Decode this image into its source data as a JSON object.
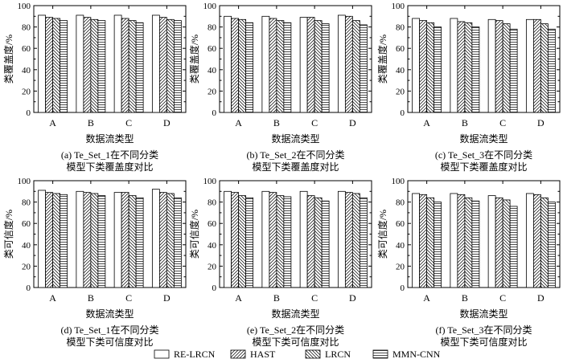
{
  "figure": {
    "legend": [
      "RE-LRCN",
      "HAST",
      "LRCN",
      "MMN-CNN"
    ],
    "patterns": [
      "blank",
      "diag-right",
      "diag-left",
      "horizontal"
    ]
  },
  "chart_data": [
    {
      "type": "bar",
      "categories": [
        "A",
        "B",
        "C",
        "D"
      ],
      "series": [
        {
          "name": "RE-LRCN",
          "values": [
            91,
            91,
            91,
            91
          ]
        },
        {
          "name": "HAST",
          "values": [
            89,
            89,
            88,
            89
          ]
        },
        {
          "name": "LRCN",
          "values": [
            88,
            87,
            86,
            87
          ]
        },
        {
          "name": "MMN-CNN",
          "values": [
            86,
            86,
            84,
            86
          ]
        }
      ],
      "xlabel": "数据流类型",
      "ylabel": "类覆盖度/%",
      "ylim": [
        0,
        100
      ],
      "yticks": [
        0,
        20,
        40,
        60,
        80,
        100
      ],
      "caption_line1": "(a) Te_Set_1在不同分类",
      "caption_line2": "模型下类覆盖度对比"
    },
    {
      "type": "bar",
      "categories": [
        "A",
        "B",
        "C",
        "D"
      ],
      "series": [
        {
          "name": "RE-LRCN",
          "values": [
            90,
            90,
            89,
            91
          ]
        },
        {
          "name": "HAST",
          "values": [
            88,
            88,
            89,
            90
          ]
        },
        {
          "name": "LRCN",
          "values": [
            87,
            86,
            86,
            86
          ]
        },
        {
          "name": "MMN-CNN",
          "values": [
            84,
            84,
            83,
            82
          ]
        }
      ],
      "xlabel": "数据流类型",
      "ylabel": "类覆盖度/%",
      "ylim": [
        0,
        100
      ],
      "yticks": [
        0,
        20,
        40,
        60,
        80,
        100
      ],
      "caption_line1": "(b) Te_Set_2在不同分类",
      "caption_line2": "模型下类覆盖度对比"
    },
    {
      "type": "bar",
      "categories": [
        "A",
        "B",
        "C",
        "D"
      ],
      "series": [
        {
          "name": "RE-LRCN",
          "values": [
            88,
            88,
            87,
            87
          ]
        },
        {
          "name": "HAST",
          "values": [
            86,
            85,
            86,
            87
          ]
        },
        {
          "name": "LRCN",
          "values": [
            84,
            84,
            83,
            83
          ]
        },
        {
          "name": "MMN-CNN",
          "values": [
            80,
            80,
            78,
            78
          ]
        }
      ],
      "xlabel": "数据流类型",
      "ylabel": "类覆盖度/%",
      "ylim": [
        0,
        100
      ],
      "yticks": [
        0,
        20,
        40,
        60,
        80,
        100
      ],
      "caption_line1": "(c) Te_Set_3在不同分类",
      "caption_line2": "模型下类覆盖度对比"
    },
    {
      "type": "bar",
      "categories": [
        "A",
        "B",
        "C",
        "D"
      ],
      "series": [
        {
          "name": "RE-LRCN",
          "values": [
            91,
            90,
            89,
            92
          ]
        },
        {
          "name": "HAST",
          "values": [
            89,
            89,
            89,
            89
          ]
        },
        {
          "name": "LRCN",
          "values": [
            88,
            88,
            86,
            88
          ]
        },
        {
          "name": "MMN-CNN",
          "values": [
            87,
            86,
            84,
            84
          ]
        }
      ],
      "xlabel": "数据流类型",
      "ylabel": "类可信度/%",
      "ylim": [
        0,
        100
      ],
      "yticks": [
        0,
        20,
        40,
        60,
        80,
        100
      ],
      "caption_line1": "(d) Te_Set_1在不同分类",
      "caption_line2": "模型下类可信度对比"
    },
    {
      "type": "bar",
      "categories": [
        "A",
        "B",
        "C",
        "D"
      ],
      "series": [
        {
          "name": "RE-LRCN",
          "values": [
            90,
            90,
            90,
            90
          ]
        },
        {
          "name": "HAST",
          "values": [
            89,
            89,
            86,
            89
          ]
        },
        {
          "name": "LRCN",
          "values": [
            86,
            86,
            84,
            88
          ]
        },
        {
          "name": "MMN-CNN",
          "values": [
            84,
            85,
            81,
            84
          ]
        }
      ],
      "xlabel": "数据流类型",
      "ylabel": "类可信度/%",
      "ylim": [
        0,
        100
      ],
      "yticks": [
        0,
        20,
        40,
        60,
        80,
        100
      ],
      "caption_line1": "(e) Te_Set_2在不同分类",
      "caption_line2": "模型下类可信度对比"
    },
    {
      "type": "bar",
      "categories": [
        "A",
        "B",
        "C",
        "D"
      ],
      "series": [
        {
          "name": "RE-LRCN",
          "values": [
            88,
            88,
            86,
            88
          ]
        },
        {
          "name": "HAST",
          "values": [
            87,
            87,
            84,
            87
          ]
        },
        {
          "name": "LRCN",
          "values": [
            84,
            84,
            82,
            84
          ]
        },
        {
          "name": "MMN-CNN",
          "values": [
            80,
            81,
            76,
            80
          ]
        }
      ],
      "xlabel": "数据流类型",
      "ylabel": "类可信度/%",
      "ylim": [
        0,
        100
      ],
      "yticks": [
        0,
        20,
        40,
        60,
        80,
        100
      ],
      "caption_line1": "(f) Te_Set_3在不同分类",
      "caption_line2": "模型下类可信度对比"
    }
  ]
}
